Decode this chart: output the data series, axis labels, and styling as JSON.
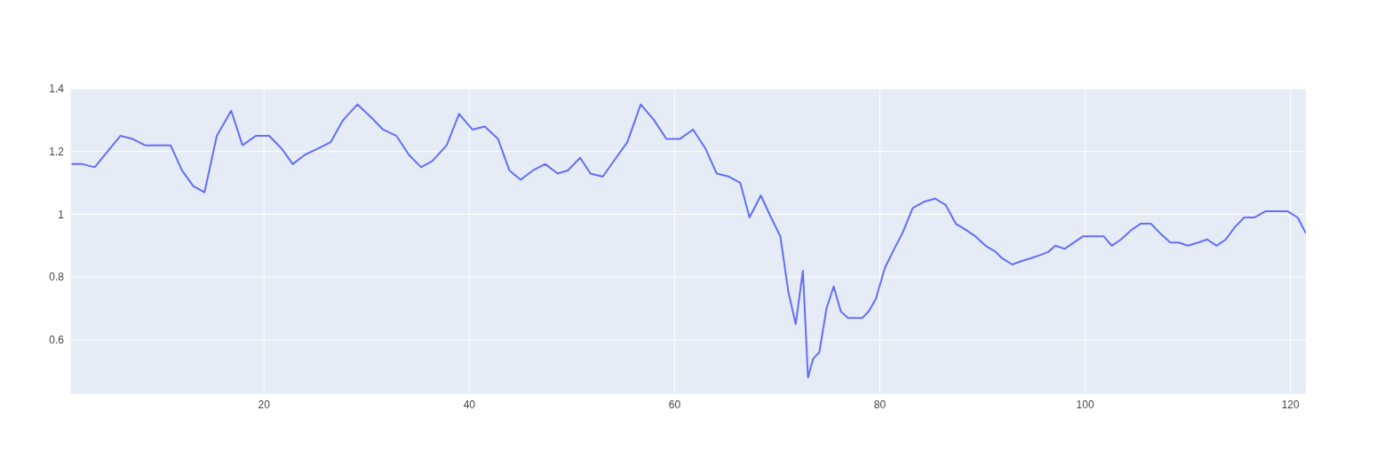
{
  "chart_data": {
    "type": "line",
    "x": [
      1.2,
      2.3,
      3.5,
      6.0,
      7.2,
      8.4,
      9.6,
      10.9,
      12.0,
      13.1,
      14.2,
      15.4,
      16.8,
      17.9,
      19.2,
      20.5,
      21.7,
      22.8,
      24.0,
      25.3,
      26.5,
      27.7,
      29.1,
      30.4,
      31.6,
      32.9,
      34.1,
      35.3,
      36.4,
      37.8,
      39.0,
      40.3,
      41.5,
      42.8,
      43.9,
      45.0,
      46.2,
      47.4,
      48.6,
      49.6,
      50.8,
      51.8,
      53.0,
      54.3,
      55.4,
      56.7,
      58.0,
      59.2,
      60.5,
      61.8,
      63.0,
      64.1,
      65.3,
      66.4,
      67.3,
      68.4,
      69.4,
      70.3,
      71.1,
      71.8,
      72.5,
      73.0,
      73.5,
      74.1,
      74.8,
      75.5,
      76.2,
      76.9,
      77.6,
      78.3,
      78.9,
      79.6,
      80.5,
      81.4,
      82.2,
      83.2,
      84.3,
      85.4,
      86.4,
      87.4,
      88.4,
      89.3,
      90.3,
      91.3,
      91.9,
      92.9,
      93.7,
      94.7,
      95.6,
      96.4,
      97.1,
      98.0,
      99.8,
      100.9,
      101.8,
      102.6,
      103.5,
      104.5,
      105.4,
      106.4,
      107.3,
      108.3,
      109.1,
      110.0,
      111.0,
      111.9,
      112.8,
      113.7,
      114.6,
      115.5,
      116.5,
      117.6,
      118.6,
      119.7,
      120.7,
      121.5
    ],
    "series": [
      {
        "color": "#636efa",
        "values": [
          1.16,
          1.16,
          1.15,
          1.25,
          1.24,
          1.22,
          1.22,
          1.22,
          1.14,
          1.09,
          1.07,
          1.25,
          1.33,
          1.22,
          1.25,
          1.25,
          1.21,
          1.16,
          1.19,
          1.21,
          1.23,
          1.3,
          1.35,
          1.31,
          1.27,
          1.25,
          1.19,
          1.15,
          1.17,
          1.22,
          1.32,
          1.27,
          1.28,
          1.24,
          1.14,
          1.11,
          1.14,
          1.16,
          1.13,
          1.14,
          1.18,
          1.13,
          1.12,
          1.18,
          1.23,
          1.35,
          1.3,
          1.24,
          1.24,
          1.27,
          1.21,
          1.13,
          1.12,
          1.1,
          0.99,
          1.06,
          0.99,
          0.93,
          0.75,
          0.65,
          0.82,
          0.48,
          0.54,
          0.56,
          0.7,
          0.77,
          0.69,
          0.67,
          0.67,
          0.67,
          0.69,
          0.73,
          0.83,
          0.89,
          0.94,
          1.02,
          1.04,
          1.05,
          1.03,
          0.97,
          0.95,
          0.93,
          0.9,
          0.88,
          0.86,
          0.84,
          0.85,
          0.86,
          0.87,
          0.88,
          0.9,
          0.89,
          0.93,
          0.93,
          0.93,
          0.9,
          0.92,
          0.95,
          0.97,
          0.97,
          0.94,
          0.91,
          0.91,
          0.9,
          0.91,
          0.92,
          0.9,
          0.92,
          0.96,
          0.99,
          0.99,
          1.01,
          1.01,
          1.01,
          0.99,
          0.94
        ]
      }
    ],
    "xlim": [
      1.2,
      121.5
    ],
    "xticks": [
      20,
      40,
      60,
      80,
      100,
      120
    ],
    "ylim": [
      0.43,
      1.4
    ],
    "yticks": [
      0.6,
      0.8,
      1,
      1.2,
      1.4
    ],
    "grid": true,
    "marker": "none",
    "line_style": "solid"
  }
}
